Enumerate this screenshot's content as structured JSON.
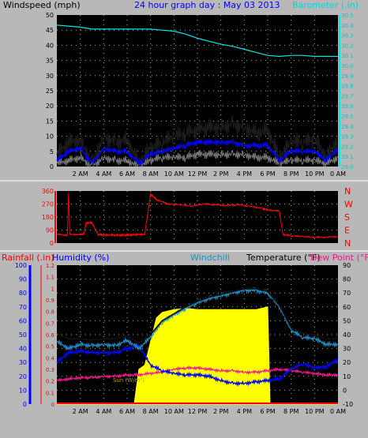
{
  "colors": {
    "frame_bg": "#b8b8b8",
    "plot_bg": "#000000",
    "grid": "#aaaaaa",
    "wind_gust": "#000000",
    "wind_avg": "#0000ff",
    "wind_gray": "#808080",
    "barometer": "#00e8e8",
    "direction": "#ff0000",
    "temperature": "#000000",
    "humidity": "#0000ff",
    "windchill": "#1e90c8",
    "dewpoint": "#ff1493",
    "sun": "#ffff00",
    "rainfall": "#ff0000"
  },
  "header": {
    "windspeed_label": "Windspeed (mph)",
    "title": "24 hour graph day : May 03 2013",
    "barometer_label": "Barometer (.in)"
  },
  "legend": {
    "rainfall": "Rainfall (.in)",
    "humidity": "Humidity (%)",
    "windchill": "Windchill",
    "temperature": "Temperature (°F)",
    "dewpoint": "Dew Point (°F)",
    "sun": "Sun (W/m²)"
  },
  "direction_labels": [
    "N",
    "W",
    "S",
    "E",
    "N"
  ],
  "chart_data": [
    {
      "type": "line",
      "name": "wind-barometer",
      "x_ticks": [
        "2 AM",
        "4 AM",
        "6 AM",
        "8 AM",
        "10 AM",
        "12 PM",
        "2 PM",
        "4 PM",
        "6 PM",
        "8 PM",
        "10 PM",
        "0 AM"
      ],
      "x_hours": [
        0,
        24
      ],
      "y_left": {
        "label": "Windspeed (mph)",
        "ylim": [
          0,
          50
        ],
        "ticks": [
          "0",
          "5",
          "10",
          "15",
          "20",
          "25",
          "30",
          "35",
          "40",
          "45",
          "50"
        ]
      },
      "y_right": {
        "label": "Barometer (.in)",
        "ylim": [
          29.0,
          30.5
        ],
        "ticks": [
          "29.0",
          "29.1",
          "29.2",
          "29.3",
          "29.4",
          "29.5",
          "29.6",
          "29.7",
          "29.8",
          "29.9",
          "30.0",
          "30.1",
          "30.2",
          "30.3",
          "30.4",
          "30.5"
        ]
      },
      "series": [
        {
          "name": "Barometer",
          "x": [
            0,
            1,
            2,
            3,
            4,
            5,
            6,
            7,
            8,
            9,
            10,
            11,
            12,
            13,
            14,
            15,
            16,
            17,
            18,
            19,
            20,
            21,
            22,
            23,
            24
          ],
          "values": [
            30.4,
            30.39,
            30.38,
            30.36,
            30.36,
            30.36,
            30.36,
            30.36,
            30.36,
            30.35,
            30.34,
            30.31,
            30.27,
            30.24,
            30.21,
            30.19,
            30.16,
            30.13,
            30.1,
            30.09,
            30.1,
            30.1,
            30.09,
            30.09,
            30.09
          ]
        },
        {
          "name": "Gust",
          "x": [
            0,
            1,
            2,
            3,
            4,
            5,
            6,
            7,
            8,
            9,
            10,
            11,
            12,
            13,
            14,
            15,
            16,
            17,
            18,
            19,
            20,
            21,
            22,
            23,
            24
          ],
          "values": [
            4,
            8,
            9,
            1,
            10,
            8,
            9,
            1,
            6,
            8,
            10,
            11,
            12,
            13,
            13,
            14,
            13,
            11,
            12,
            3,
            8,
            8,
            9,
            3,
            9
          ]
        },
        {
          "name": "Average",
          "x": [
            0,
            1,
            2,
            3,
            4,
            5,
            6,
            7,
            8,
            9,
            10,
            11,
            12,
            13,
            14,
            15,
            16,
            17,
            18,
            19,
            20,
            21,
            22,
            23,
            24
          ],
          "values": [
            2,
            5,
            6,
            1,
            6,
            5,
            5,
            1,
            4,
            5,
            6,
            7,
            8,
            8,
            8,
            8,
            7,
            7,
            7,
            2,
            5,
            5,
            5,
            2,
            6
          ]
        },
        {
          "name": "Calm",
          "x": [
            0,
            1,
            2,
            3,
            4,
            5,
            6,
            7,
            8,
            9,
            10,
            11,
            12,
            13,
            14,
            15,
            16,
            17,
            18,
            19,
            20,
            21,
            22,
            23,
            24
          ],
          "values": [
            1,
            2,
            3,
            0,
            3,
            2,
            2,
            0,
            2,
            3,
            3,
            3,
            4,
            4,
            4,
            4,
            4,
            3,
            3,
            1,
            2,
            2,
            2,
            1,
            3
          ]
        }
      ]
    },
    {
      "type": "line",
      "name": "wind-direction",
      "y_left": {
        "ylim": [
          0,
          360
        ],
        "ticks": [
          "0",
          "90",
          "180",
          "270",
          "360"
        ]
      },
      "series": [
        {
          "name": "Direction",
          "x": [
            0,
            0.9,
            1.0,
            1.1,
            2.0,
            2.3,
            2.5,
            3.0,
            3.5,
            4.0,
            4.5,
            5.0,
            5.5,
            6.0,
            6.5,
            7.0,
            7.5,
            8.0,
            8.5,
            9.5,
            10.5,
            11.5,
            12.5,
            13.5,
            14.5,
            15.5,
            16.5,
            17.5,
            18.0,
            19.0,
            19.3,
            20.0,
            21.0,
            22.0,
            23.0,
            24.0
          ],
          "values": [
            60,
            55,
            350,
            60,
            60,
            60,
            140,
            140,
            60,
            55,
            55,
            55,
            55,
            55,
            58,
            60,
            60,
            340,
            300,
            270,
            265,
            255,
            270,
            265,
            260,
            265,
            255,
            240,
            230,
            220,
            60,
            50,
            45,
            40,
            40,
            45
          ]
        }
      ]
    },
    {
      "type": "line",
      "name": "temperature-humidity",
      "y_left_rain": {
        "label": "Rainfall (.in)",
        "ylim": [
          0,
          1.2
        ],
        "ticks": [
          "0",
          "0.1",
          "0.2",
          "0.3",
          "0.4",
          "0.5",
          "0.6",
          "0.7",
          "0.8",
          "0.9",
          "1",
          "1.1",
          "1.2"
        ]
      },
      "y_left_humidity": {
        "label": "Humidity (%)",
        "ylim": [
          0,
          100
        ],
        "ticks": [
          "0",
          "10",
          "20",
          "30",
          "40",
          "50",
          "60",
          "70",
          "80",
          "90",
          "100"
        ]
      },
      "y_right": {
        "label": "Temperature (°F)",
        "ylim": [
          -10,
          90
        ],
        "ticks": [
          "-10",
          "0",
          "10",
          "20",
          "30",
          "40",
          "50",
          "60",
          "70",
          "80",
          "90"
        ]
      },
      "series": [
        {
          "name": "Temperature",
          "x": [
            0,
            1,
            2,
            3,
            4,
            5,
            6,
            7,
            8,
            9,
            10,
            11,
            12,
            13,
            14,
            15,
            16,
            17,
            18,
            19,
            20,
            21,
            22,
            23,
            24
          ],
          "values": [
            41,
            37,
            37,
            36,
            37,
            37,
            39,
            34,
            40,
            50,
            55,
            60,
            64,
            67,
            69,
            71,
            73,
            73,
            71,
            61,
            45,
            41,
            40,
            37,
            37
          ]
        },
        {
          "name": "Windchill",
          "x": [
            0,
            1,
            2,
            3,
            4,
            5,
            6,
            7,
            8,
            9,
            10,
            11,
            12,
            13,
            14,
            15,
            16,
            17,
            18,
            19,
            20,
            21,
            22,
            23,
            24
          ],
          "values": [
            35,
            30,
            33,
            32,
            33,
            32,
            36,
            30,
            38,
            49,
            54,
            59,
            63,
            66,
            68,
            70,
            72,
            72,
            70,
            60,
            43,
            38,
            37,
            33,
            33
          ]
        },
        {
          "name": "Humidity",
          "x": [
            0,
            1,
            2,
            3,
            4,
            5,
            6,
            7,
            8,
            9,
            10,
            11,
            12,
            13,
            14,
            15,
            16,
            17,
            18,
            19,
            20,
            21,
            22,
            23,
            24
          ],
          "values": [
            30,
            37,
            38,
            37,
            37,
            37,
            40,
            42,
            28,
            24,
            22,
            21,
            21,
            20,
            17,
            15,
            15,
            16,
            17,
            18,
            25,
            29,
            26,
            27,
            32
          ]
        },
        {
          "name": "Dew Point",
          "x": [
            0,
            1,
            2,
            3,
            4,
            5,
            6,
            7,
            8,
            9,
            10,
            11,
            12,
            13,
            14,
            15,
            16,
            17,
            18,
            19,
            20,
            21,
            22,
            23,
            24
          ],
          "values": [
            7,
            8,
            9,
            9,
            10,
            10,
            11,
            11,
            12,
            13,
            15,
            16,
            16,
            15,
            14,
            14,
            13,
            13,
            14,
            15,
            14,
            13,
            12,
            11,
            11
          ]
        },
        {
          "name": "Sun",
          "x": [
            0,
            6.6,
            7.0,
            7.5,
            8.0,
            8.5,
            9.0,
            10.0,
            11.0,
            12.0,
            13.0,
            14.0,
            15.0,
            16.0,
            17.0,
            17.5,
            18.0,
            18.2,
            24.0
          ],
          "values_pct_of_scale": [
            0,
            0,
            25,
            28,
            45,
            62,
            66,
            68,
            69,
            68,
            68,
            68,
            68,
            68,
            68,
            69,
            70,
            0,
            0
          ]
        },
        {
          "name": "Rainfall",
          "x": [
            0,
            24
          ],
          "values": [
            0,
            0
          ]
        }
      ]
    }
  ]
}
